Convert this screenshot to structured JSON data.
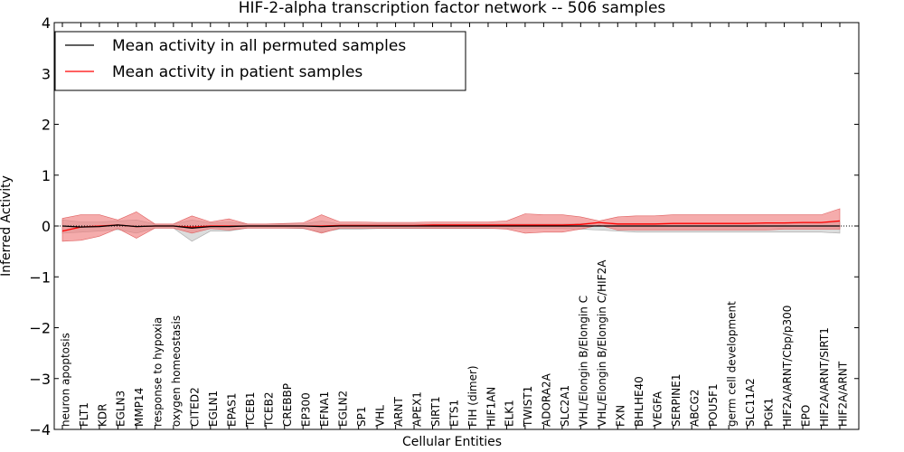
{
  "chart_data": {
    "type": "line",
    "title": "HIF-2-alpha transcription factor network -- 506 samples",
    "xlabel": "Cellular Entities",
    "ylabel": "Inferred Activity",
    "ylim": [
      -4,
      4
    ],
    "yticks": [
      4,
      3,
      2,
      1,
      0,
      -1,
      -2,
      -3,
      -4
    ],
    "ytick_labels": [
      "4",
      "3",
      "2",
      "1",
      "0",
      "−1",
      "−2",
      "−3",
      "−4"
    ],
    "legend_position": "top-left",
    "categories": [
      "neuron apoptosis",
      "FLT1",
      "KDR",
      "EGLN3",
      "MMP14",
      "response to hypoxia",
      "oxygen homeostasis",
      "CITED2",
      "EGLN1",
      "EPAS1",
      "TCEB1",
      "TCEB2",
      "CREBBP",
      "EP300",
      "EFNA1",
      "EGLN2",
      "SP1",
      "VHL",
      "ARNT",
      "APEX1",
      "SIRT1",
      "ETS1",
      "FIH (dimer)",
      "HIF1AN",
      "ELK1",
      "TWIST1",
      "ADORA2A",
      "SLC2A1",
      "VHL/Elongin B/Elongin C",
      "VHL/Elongin B/Elongin C/HIF2A",
      "FXN",
      "BHLHE40",
      "VEGFA",
      "SERPINE1",
      "ABCG2",
      "POU5F1",
      "germ cell development",
      "SLC11A2",
      "PGK1",
      "HIF2A/ARNT/Cbp/p300",
      "EPO",
      "HIF2A/ARNT/SIRT1",
      "HIF2A/ARNT"
    ],
    "series": [
      {
        "name": "Mean activity in all permuted samples",
        "color": "#000000",
        "band_color": "#bfbfbf",
        "values": [
          0.0,
          -0.02,
          -0.01,
          0.02,
          -0.01,
          0.0,
          0.0,
          -0.04,
          -0.01,
          -0.01,
          0.0,
          0.0,
          0.0,
          0.0,
          -0.01,
          0.0,
          0.0,
          0.0,
          0.0,
          0.0,
          0.0,
          0.0,
          0.0,
          0.0,
          0.0,
          0.0,
          0.0,
          0.0,
          0.0,
          0.0,
          0.0,
          0.0,
          0.0,
          0.0,
          0.0,
          0.0,
          0.0,
          0.0,
          0.0,
          0.0,
          0.0,
          0.0,
          0.0
        ],
        "upper": [
          0.12,
          0.08,
          0.08,
          0.1,
          0.12,
          0.04,
          0.04,
          0.12,
          0.06,
          0.08,
          0.04,
          0.04,
          0.04,
          0.04,
          0.1,
          0.04,
          0.04,
          0.04,
          0.04,
          0.04,
          0.04,
          0.04,
          0.04,
          0.04,
          0.04,
          0.04,
          0.04,
          0.04,
          0.05,
          0.06,
          0.05,
          0.05,
          0.05,
          0.05,
          0.05,
          0.05,
          0.05,
          0.05,
          0.05,
          0.05,
          0.06,
          0.06,
          0.08
        ],
        "lower": [
          -0.14,
          -0.12,
          -0.1,
          -0.07,
          -0.14,
          -0.04,
          -0.04,
          -0.3,
          -0.1,
          -0.1,
          -0.04,
          -0.04,
          -0.04,
          -0.05,
          -0.12,
          -0.06,
          -0.06,
          -0.05,
          -0.05,
          -0.05,
          -0.05,
          -0.05,
          -0.05,
          -0.05,
          -0.05,
          -0.05,
          -0.05,
          -0.05,
          -0.06,
          -0.08,
          -0.1,
          -0.12,
          -0.12,
          -0.12,
          -0.12,
          -0.12,
          -0.12,
          -0.12,
          -0.12,
          -0.12,
          -0.12,
          -0.12,
          -0.14
        ]
      },
      {
        "name": "Mean activity in patient samples",
        "color": "#ff0000",
        "band_color": "#f08080",
        "values": [
          -0.1,
          -0.02,
          0.0,
          0.02,
          -0.01,
          0.0,
          0.0,
          -0.02,
          0.0,
          0.0,
          0.0,
          0.0,
          0.0,
          0.0,
          0.0,
          0.01,
          0.01,
          0.01,
          0.01,
          0.01,
          0.02,
          0.02,
          0.02,
          0.02,
          0.02,
          0.02,
          0.02,
          0.02,
          0.03,
          0.07,
          0.04,
          0.04,
          0.04,
          0.05,
          0.05,
          0.05,
          0.05,
          0.05,
          0.06,
          0.06,
          0.07,
          0.07,
          0.1
        ],
        "upper": [
          0.15,
          0.22,
          0.22,
          0.12,
          0.28,
          0.04,
          0.04,
          0.2,
          0.08,
          0.14,
          0.04,
          0.04,
          0.05,
          0.06,
          0.22,
          0.08,
          0.08,
          0.07,
          0.07,
          0.07,
          0.08,
          0.08,
          0.08,
          0.08,
          0.1,
          0.24,
          0.22,
          0.22,
          0.18,
          0.1,
          0.18,
          0.2,
          0.2,
          0.22,
          0.22,
          0.22,
          0.22,
          0.22,
          0.22,
          0.22,
          0.22,
          0.22,
          0.34
        ],
        "lower": [
          -0.3,
          -0.28,
          -0.2,
          -0.05,
          -0.24,
          -0.04,
          -0.04,
          -0.14,
          -0.05,
          -0.08,
          -0.04,
          -0.04,
          -0.04,
          -0.04,
          -0.14,
          -0.04,
          -0.04,
          -0.04,
          -0.04,
          -0.04,
          -0.04,
          -0.04,
          -0.04,
          -0.04,
          -0.06,
          -0.14,
          -0.12,
          -0.12,
          -0.06,
          0.02,
          -0.08,
          -0.08,
          -0.08,
          -0.08,
          -0.08,
          -0.08,
          -0.08,
          -0.08,
          -0.08,
          -0.06,
          -0.06,
          -0.06,
          -0.06
        ]
      }
    ]
  }
}
